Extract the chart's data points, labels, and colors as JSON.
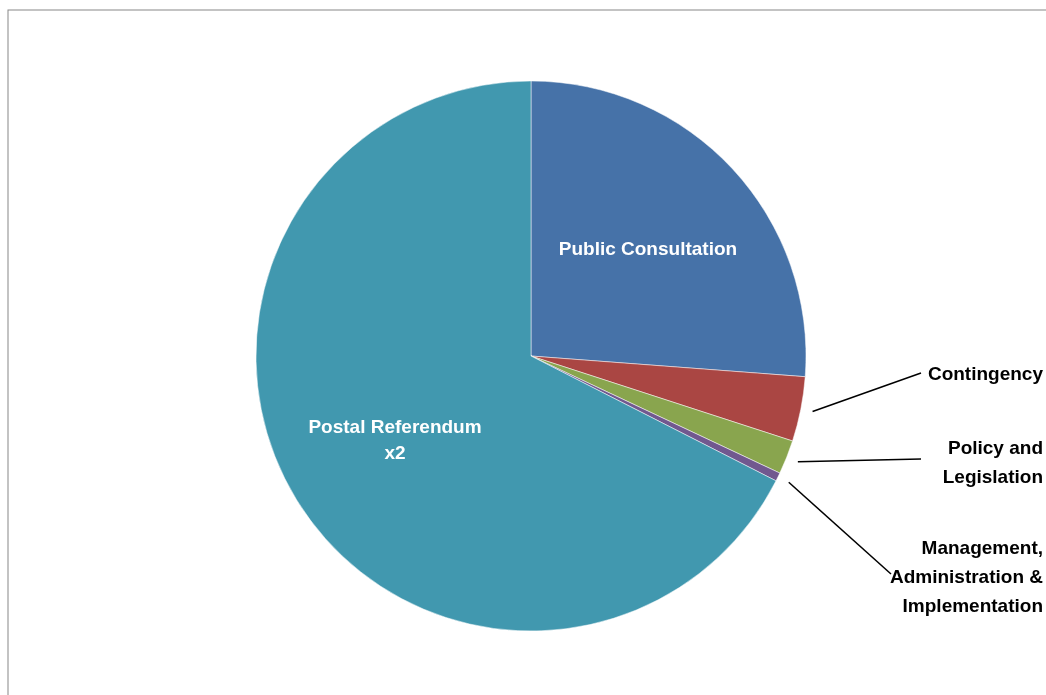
{
  "chart_data": {
    "type": "pie",
    "categories": [
      "Public Consultation",
      "Contingency",
      "Policy and Legislation",
      "Management, Administration & Implementation",
      "Postal Referendum x2"
    ],
    "values": [
      26.2,
      3.8,
      2.0,
      0.5,
      67.5
    ],
    "colors": [
      "#4672a8",
      "#aa4643",
      "#89a54e",
      "#71588f",
      "#4198af"
    ],
    "data_labels": false
  }
}
